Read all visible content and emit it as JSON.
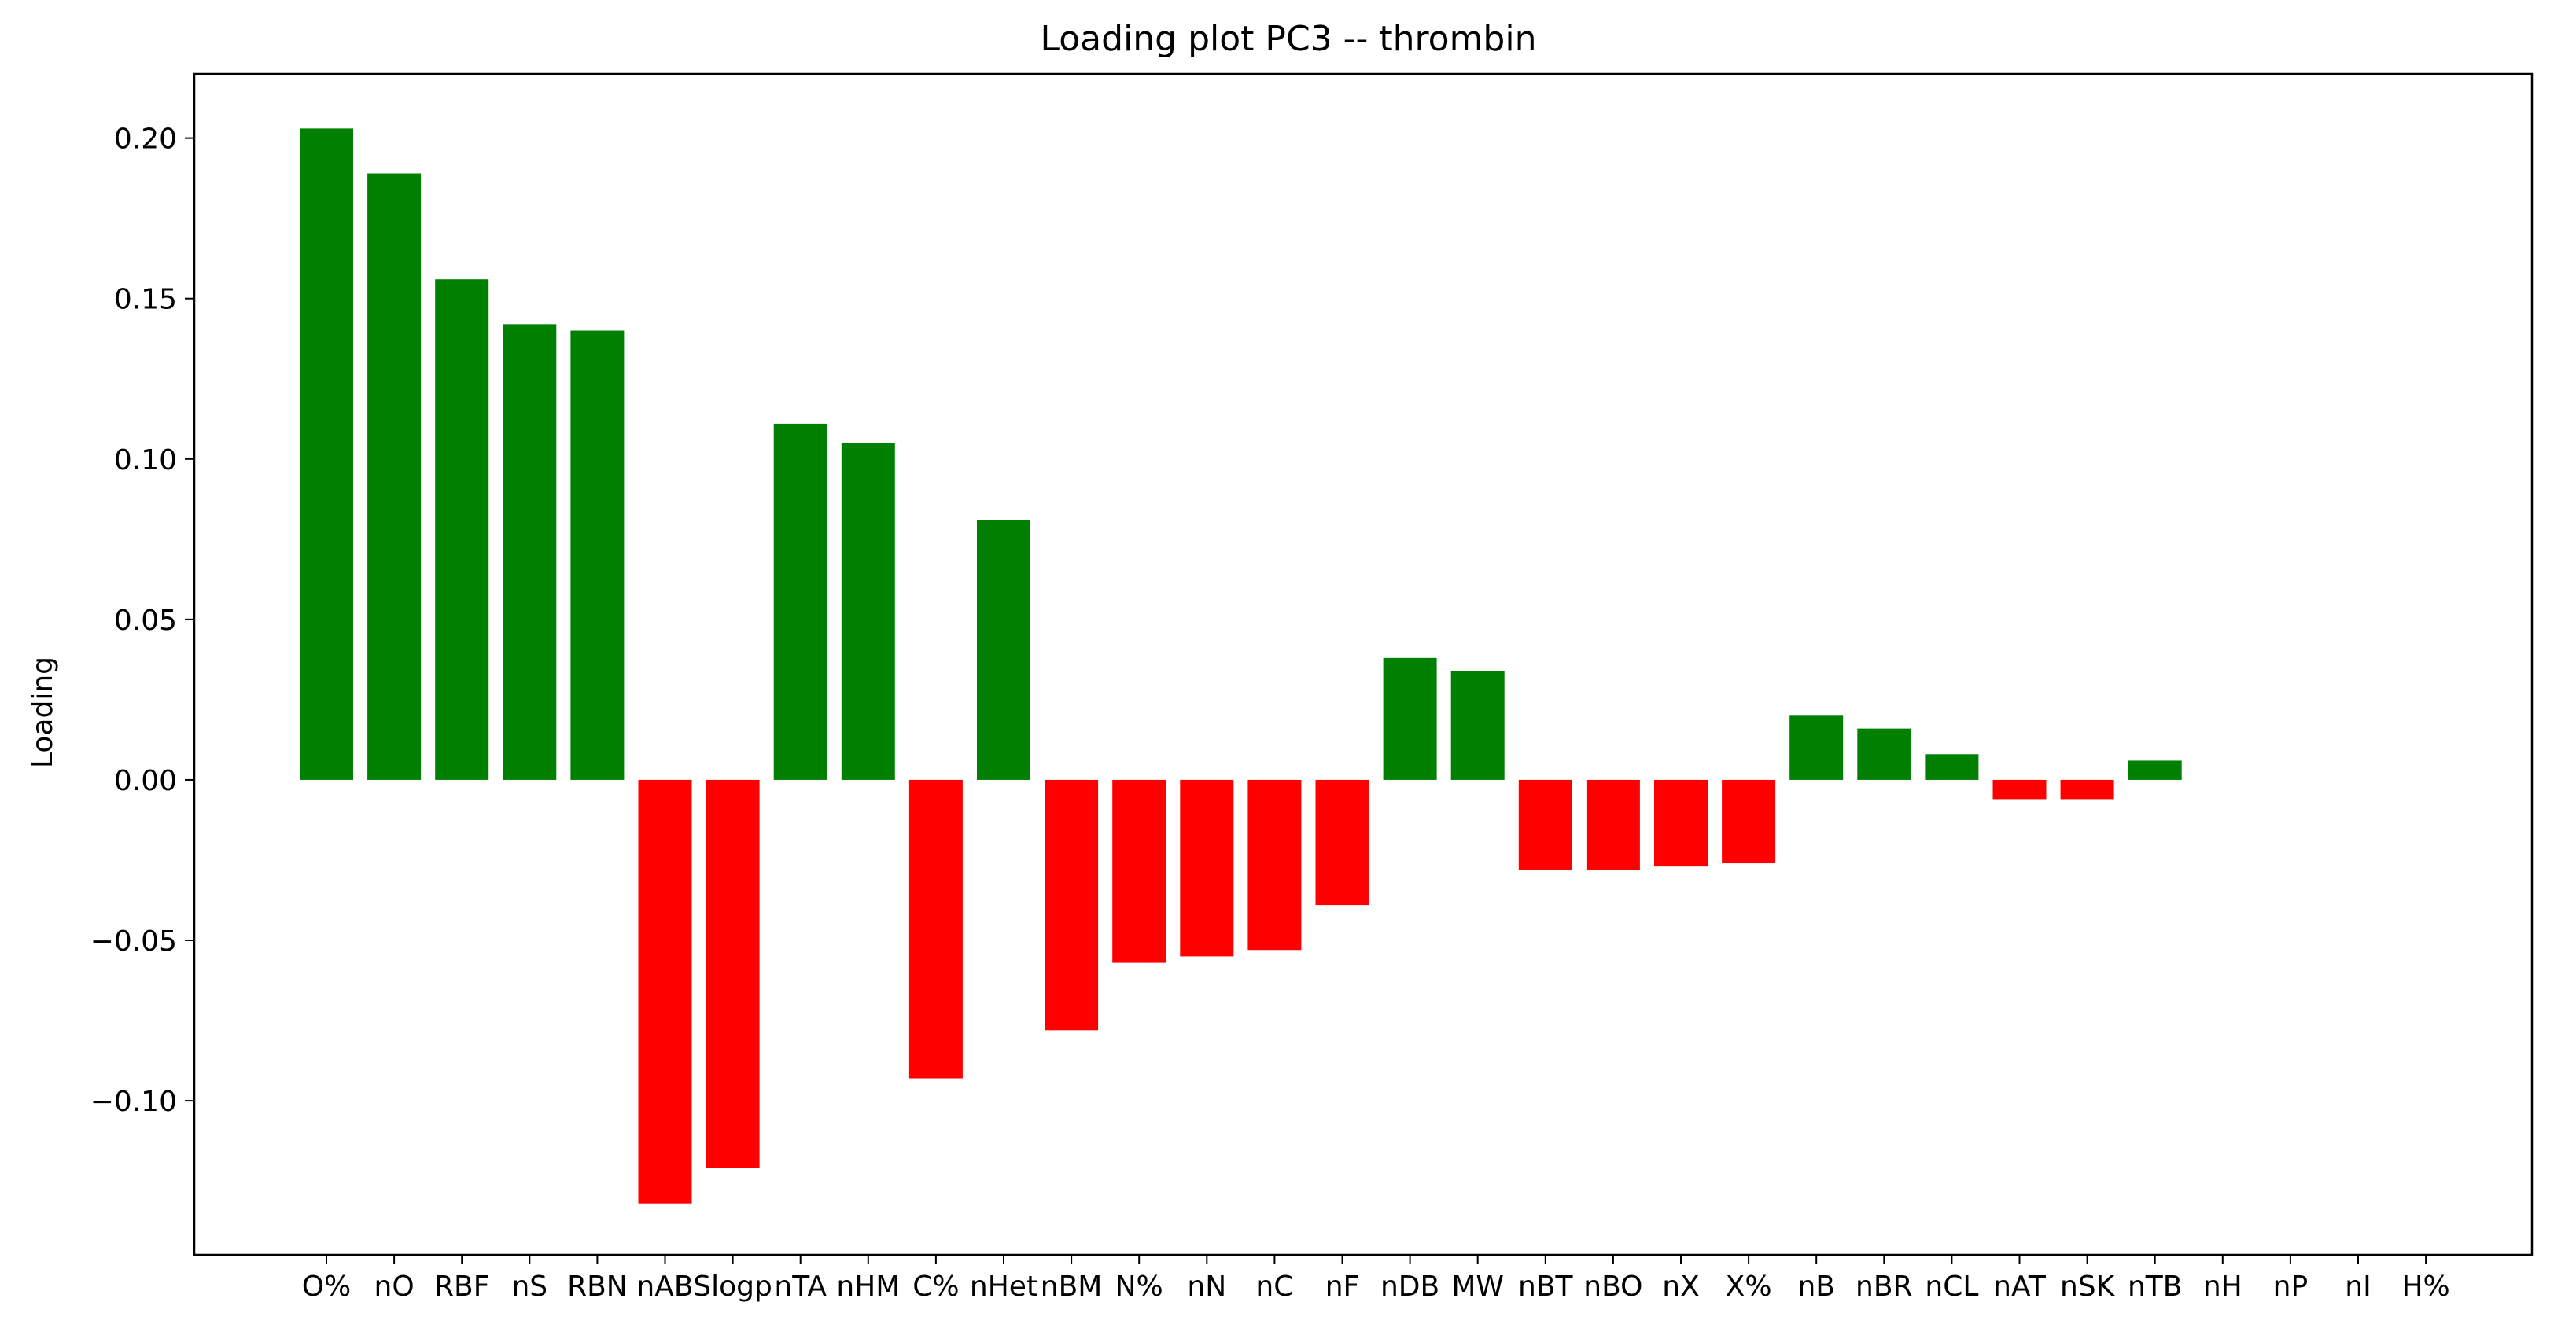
{
  "chart_data": {
    "type": "bar",
    "title": "Loading plot PC3 -- thrombin",
    "xlabel": "",
    "ylabel": "Loading",
    "categories": [
      "O%",
      "nO",
      "RBF",
      "nS",
      "RBN",
      "nAB",
      "Slogp",
      "nTA",
      "nHM",
      "C%",
      "nHet",
      "nBM",
      "N%",
      "nN",
      "nC",
      "nF",
      "nDB",
      "MW",
      "nBT",
      "nBO",
      "nX",
      "X%",
      "nB",
      "nBR",
      "nCL",
      "nAT",
      "nSK",
      "nTB",
      "nH",
      "nP",
      "nI",
      "H%"
    ],
    "values": [
      0.203,
      0.189,
      0.156,
      0.142,
      0.14,
      -0.132,
      -0.121,
      0.111,
      0.105,
      -0.093,
      0.081,
      -0.078,
      -0.057,
      -0.055,
      -0.053,
      -0.039,
      0.038,
      0.034,
      -0.028,
      -0.028,
      -0.027,
      -0.026,
      0.02,
      0.016,
      0.008,
      -0.006,
      -0.006,
      0.006,
      0.0,
      0.0,
      0.0,
      0.0
    ],
    "ylim": [
      -0.148,
      0.22
    ],
    "yticks": [
      -0.1,
      -0.05,
      0.0,
      0.05,
      0.1,
      0.15,
      0.2
    ],
    "ytick_labels": [
      "−0.10",
      "−0.05",
      "0.00",
      "0.05",
      "0.10",
      "0.15",
      "0.20"
    ],
    "colors": {
      "positive": "#008000",
      "negative": "#ff0000"
    },
    "grid": false,
    "legend": "none"
  }
}
